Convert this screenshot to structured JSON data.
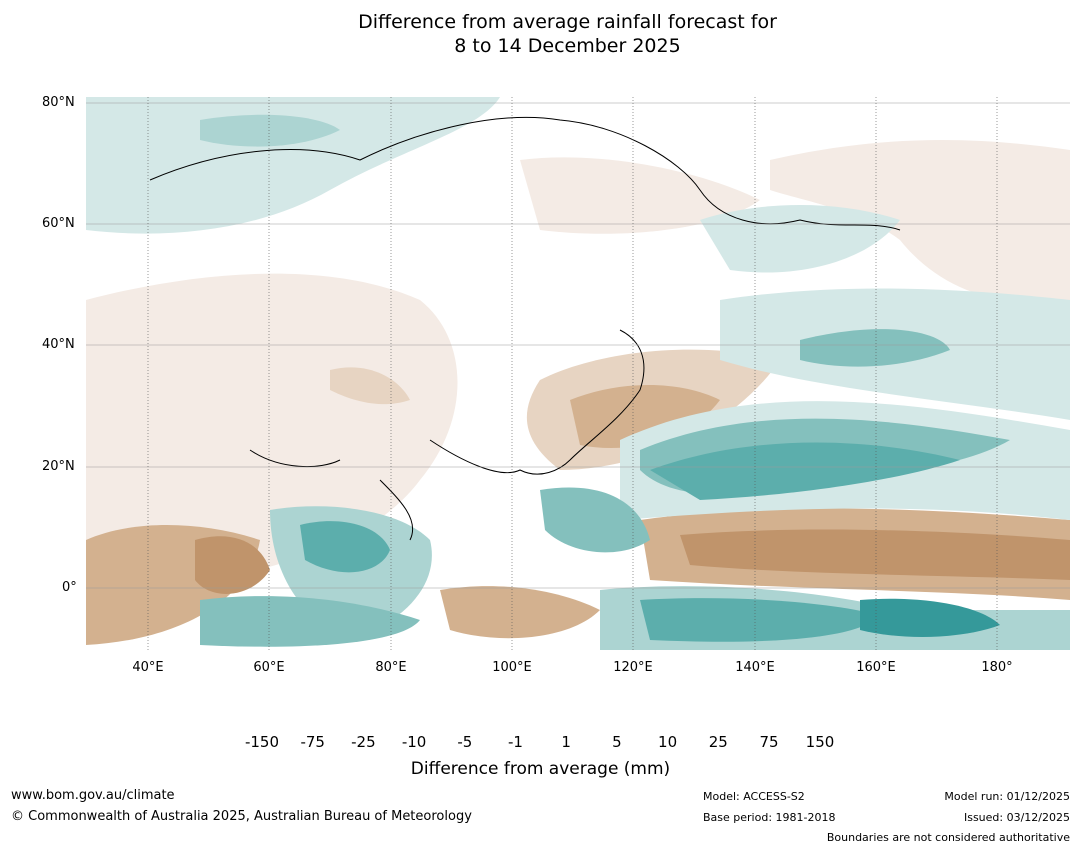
{
  "title": {
    "line1": "Difference from average rainfall forecast for",
    "line2": "8 to 14 December 2025"
  },
  "map": {
    "lat_labels": [
      "80°N",
      "60°N",
      "40°N",
      "20°N",
      "0°"
    ],
    "lon_labels": [
      "40°E",
      "60°E",
      "80°E",
      "100°E",
      "120°E",
      "140°E",
      "160°E",
      "180°"
    ],
    "extent": {
      "lon_min": 30,
      "lon_max": 192,
      "lat_min": -10,
      "lat_max": 81
    }
  },
  "colorbar": {
    "title": "Difference from average (mm)",
    "ticks": [
      "-150",
      "-75",
      "-25",
      "-10",
      "-5",
      "-1",
      "1",
      "5",
      "10",
      "25",
      "75",
      "150"
    ],
    "colors": [
      "#9c6a3a",
      "#ad7640",
      "#c0946b",
      "#d3b18f",
      "#e7d4c2",
      "#f4ebe5",
      "#ffffff",
      "#d4e8e7",
      "#acd4d2",
      "#84c0bd",
      "#5caeac",
      "#35999a",
      "#2b7b7a"
    ]
  },
  "footer": {
    "url": "www.bom.gov.au/climate",
    "copyright": "© Commonwealth of Australia 2025, Australian Bureau of Meteorology",
    "model": "Model: ACCESS-S2",
    "base_period": "Base period: 1981-2018",
    "model_run": "Model run: 01/12/2025",
    "issued": "Issued: 03/12/2025",
    "disclaimer": "Boundaries are not considered authoritative"
  }
}
